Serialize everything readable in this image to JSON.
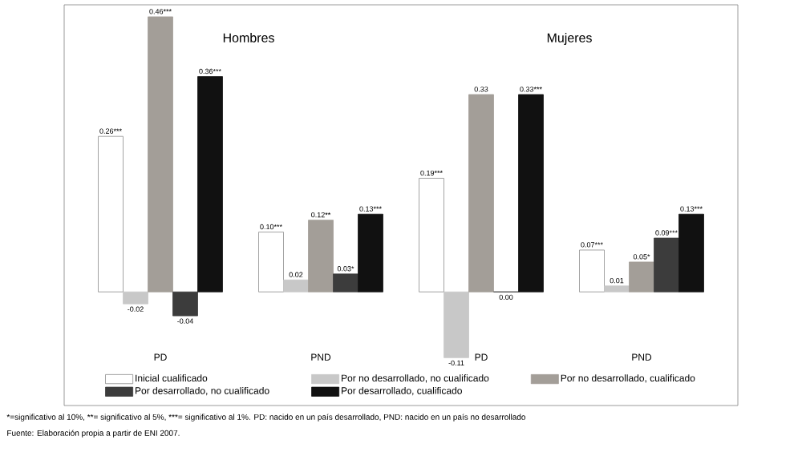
{
  "chart_data": {
    "type": "bar",
    "categories": [
      "PD",
      "PND",
      "PD",
      "PND"
    ],
    "series": [
      {
        "name": "Inicial cualificado",
        "color": "#ffffff",
        "values": [
          0.26,
          0.1,
          0.19,
          0.07
        ],
        "value_labels": [
          "0.26***",
          "0.10***",
          "0.19***",
          "0.07***"
        ]
      },
      {
        "name": "Por no desarrollado, no cualificado",
        "color": "#c8c8c8",
        "values": [
          -0.02,
          0.02,
          -0.11,
          0.01
        ],
        "value_labels": [
          "-0.02",
          "0.02",
          "-0.11",
          "0.01"
        ]
      },
      {
        "name": "Por no desarrollado, cualificado",
        "color": "#a39e98",
        "values": [
          0.46,
          0.12,
          0.33,
          0.05
        ],
        "value_labels": [
          "0.46***",
          "0.12**",
          "0.33",
          "0.05*"
        ]
      },
      {
        "name": "Por desarrollado, no cualificado",
        "color": "#3c3c3c",
        "values": [
          -0.04,
          0.03,
          0.0,
          0.09
        ],
        "value_labels": [
          "-0.04",
          "0.03*",
          "0.00",
          "0.09***"
        ]
      },
      {
        "name": "Por desarrollado, cualificado",
        "color": "#111111",
        "values": [
          0.36,
          0.13,
          0.33,
          0.13
        ],
        "value_labels": [
          "0.36***",
          "0.13***",
          "0.33***",
          "0.13***"
        ]
      }
    ],
    "ylim": [
      -0.19,
      0.48
    ],
    "tick_labels": "x",
    "legend": "bottom",
    "annotations": [
      "Hombres",
      "Mujeres",
      "*=significativo al 10%,",
      "**= significativo al 5%,",
      "***= significativo al 1%. PD: nacido en un país desarrollado, PND: nacido en un país no desarrollado",
      "Fuente: Elaboración propia a partir de ENI 2007."
    ]
  }
}
